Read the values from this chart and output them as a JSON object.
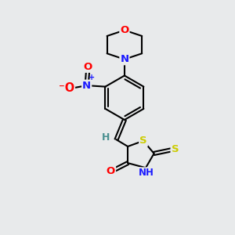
{
  "bg_color": "#e8eaeb",
  "atom_colors": {
    "C": "#000000",
    "N": "#1a1aff",
    "O": "#ff0000",
    "S": "#cccc00",
    "H": "#4a9090"
  },
  "bond_color": "#000000",
  "bond_width": 1.5,
  "font_size_atom": 9.5,
  "figsize": [
    3.0,
    3.0
  ],
  "dpi": 100
}
